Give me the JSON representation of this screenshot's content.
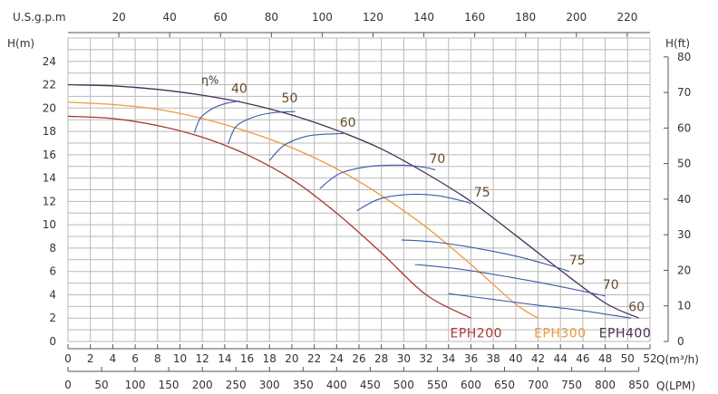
{
  "chart_data": {
    "type": "line",
    "axis_labels": {
      "x_primary": "Q(m³/h)",
      "x_lpm": "Q(LPM)",
      "x_gpm": "U.S.g.p.m",
      "y_left": "H(m)",
      "y_right": "H(ft)"
    },
    "x_m3h_ticks": [
      "0",
      "2",
      "4",
      "6",
      "8",
      "10",
      "12",
      "14",
      "16",
      "18",
      "20",
      "22",
      "24",
      "26",
      "28",
      "30",
      "32",
      "34",
      "36",
      "38",
      "40",
      "42",
      "44",
      "46",
      "48",
      "50",
      "52"
    ],
    "x_lpm_ticks": [
      "0",
      "50",
      "100",
      "150",
      "200",
      "250",
      "300",
      "350",
      "400",
      "450",
      "500",
      "550",
      "600",
      "650",
      "700",
      "750",
      "800",
      "850"
    ],
    "x_gpm_ticks": [
      "20",
      "40",
      "60",
      "80",
      "100",
      "120",
      "140",
      "160",
      "180",
      "200",
      "220"
    ],
    "y_m_ticks": [
      "0",
      "2",
      "4",
      "6",
      "8",
      "10",
      "12",
      "14",
      "16",
      "18",
      "20",
      "22",
      "24"
    ],
    "y_ft_ticks": [
      "0",
      "10",
      "20",
      "30",
      "40",
      "50",
      "60",
      "70",
      "80"
    ],
    "xlim": [
      0,
      52
    ],
    "ylim": [
      0,
      26
    ],
    "grid": true,
    "efficiency_prefix": "η%",
    "series": [
      {
        "name": "EPH200",
        "color": "#a83a32",
        "x": [
          0,
          4,
          8,
          12,
          16,
          20,
          24,
          28,
          32,
          36
        ],
        "y": [
          19.3,
          19.1,
          18.5,
          17.5,
          16.0,
          13.9,
          11.0,
          7.6,
          4.0,
          2.0
        ]
      },
      {
        "name": "EPH300",
        "color": "#ee9a3a",
        "x": [
          0,
          4,
          8,
          12,
          16,
          20,
          24,
          28,
          32,
          36,
          40,
          42
        ],
        "y": [
          20.5,
          20.3,
          19.9,
          19.1,
          18.0,
          16.6,
          14.8,
          12.5,
          9.8,
          6.6,
          3.2,
          2.0
        ]
      },
      {
        "name": "EPH400",
        "color": "#4a2f55",
        "x": [
          0,
          4,
          8,
          12,
          16,
          20,
          24,
          28,
          32,
          36,
          40,
          44,
          48,
          51
        ],
        "y": [
          22.0,
          21.9,
          21.6,
          21.1,
          20.4,
          19.4,
          18.1,
          16.5,
          14.4,
          12.0,
          9.1,
          6.1,
          3.3,
          2.0
        ]
      }
    ],
    "efficiency_curves": [
      {
        "label": "40",
        "x": [
          11.3,
          11.8,
          12.8,
          14.1,
          15.3
        ],
        "y": [
          17.9,
          19.1,
          19.9,
          20.4,
          20.6
        ]
      },
      {
        "label": "50",
        "x": [
          14.3,
          15.0,
          16.5,
          18.3,
          20.3
        ],
        "y": [
          16.9,
          18.4,
          19.2,
          19.6,
          19.7
        ]
      },
      {
        "label": "60",
        "x": [
          18.0,
          19.3,
          21.4,
          24.0,
          24.6
        ],
        "y": [
          15.5,
          16.8,
          17.6,
          17.8,
          17.8
        ]
      },
      {
        "label": "70",
        "x": [
          22.5,
          24.3,
          27.0,
          30.0,
          32.0,
          32.8
        ],
        "y": [
          13.1,
          14.4,
          15.0,
          15.1,
          14.9,
          14.7
        ]
      },
      {
        "label": "75",
        "x": [
          25.8,
          27.8,
          30.4,
          33.0,
          35.4,
          36.0
        ],
        "y": [
          11.2,
          12.2,
          12.6,
          12.5,
          12.0,
          11.8
        ]
      },
      {
        "label": "75",
        "x": [
          29.8,
          33.0,
          37.0,
          40.5,
          43.5,
          44.8
        ],
        "y": [
          8.7,
          8.5,
          7.9,
          7.2,
          6.4,
          6.0
        ]
      },
      {
        "label": "70",
        "x": [
          31.0,
          35.0,
          39.5,
          43.5,
          47.0,
          48.0
        ],
        "y": [
          6.6,
          6.2,
          5.5,
          4.8,
          4.1,
          3.9
        ]
      },
      {
        "label": "60",
        "x": [
          34.0,
          38.0,
          42.0,
          45.5,
          49.0,
          50.3
        ],
        "y": [
          4.1,
          3.6,
          3.1,
          2.7,
          2.2,
          2.0
        ]
      }
    ]
  }
}
